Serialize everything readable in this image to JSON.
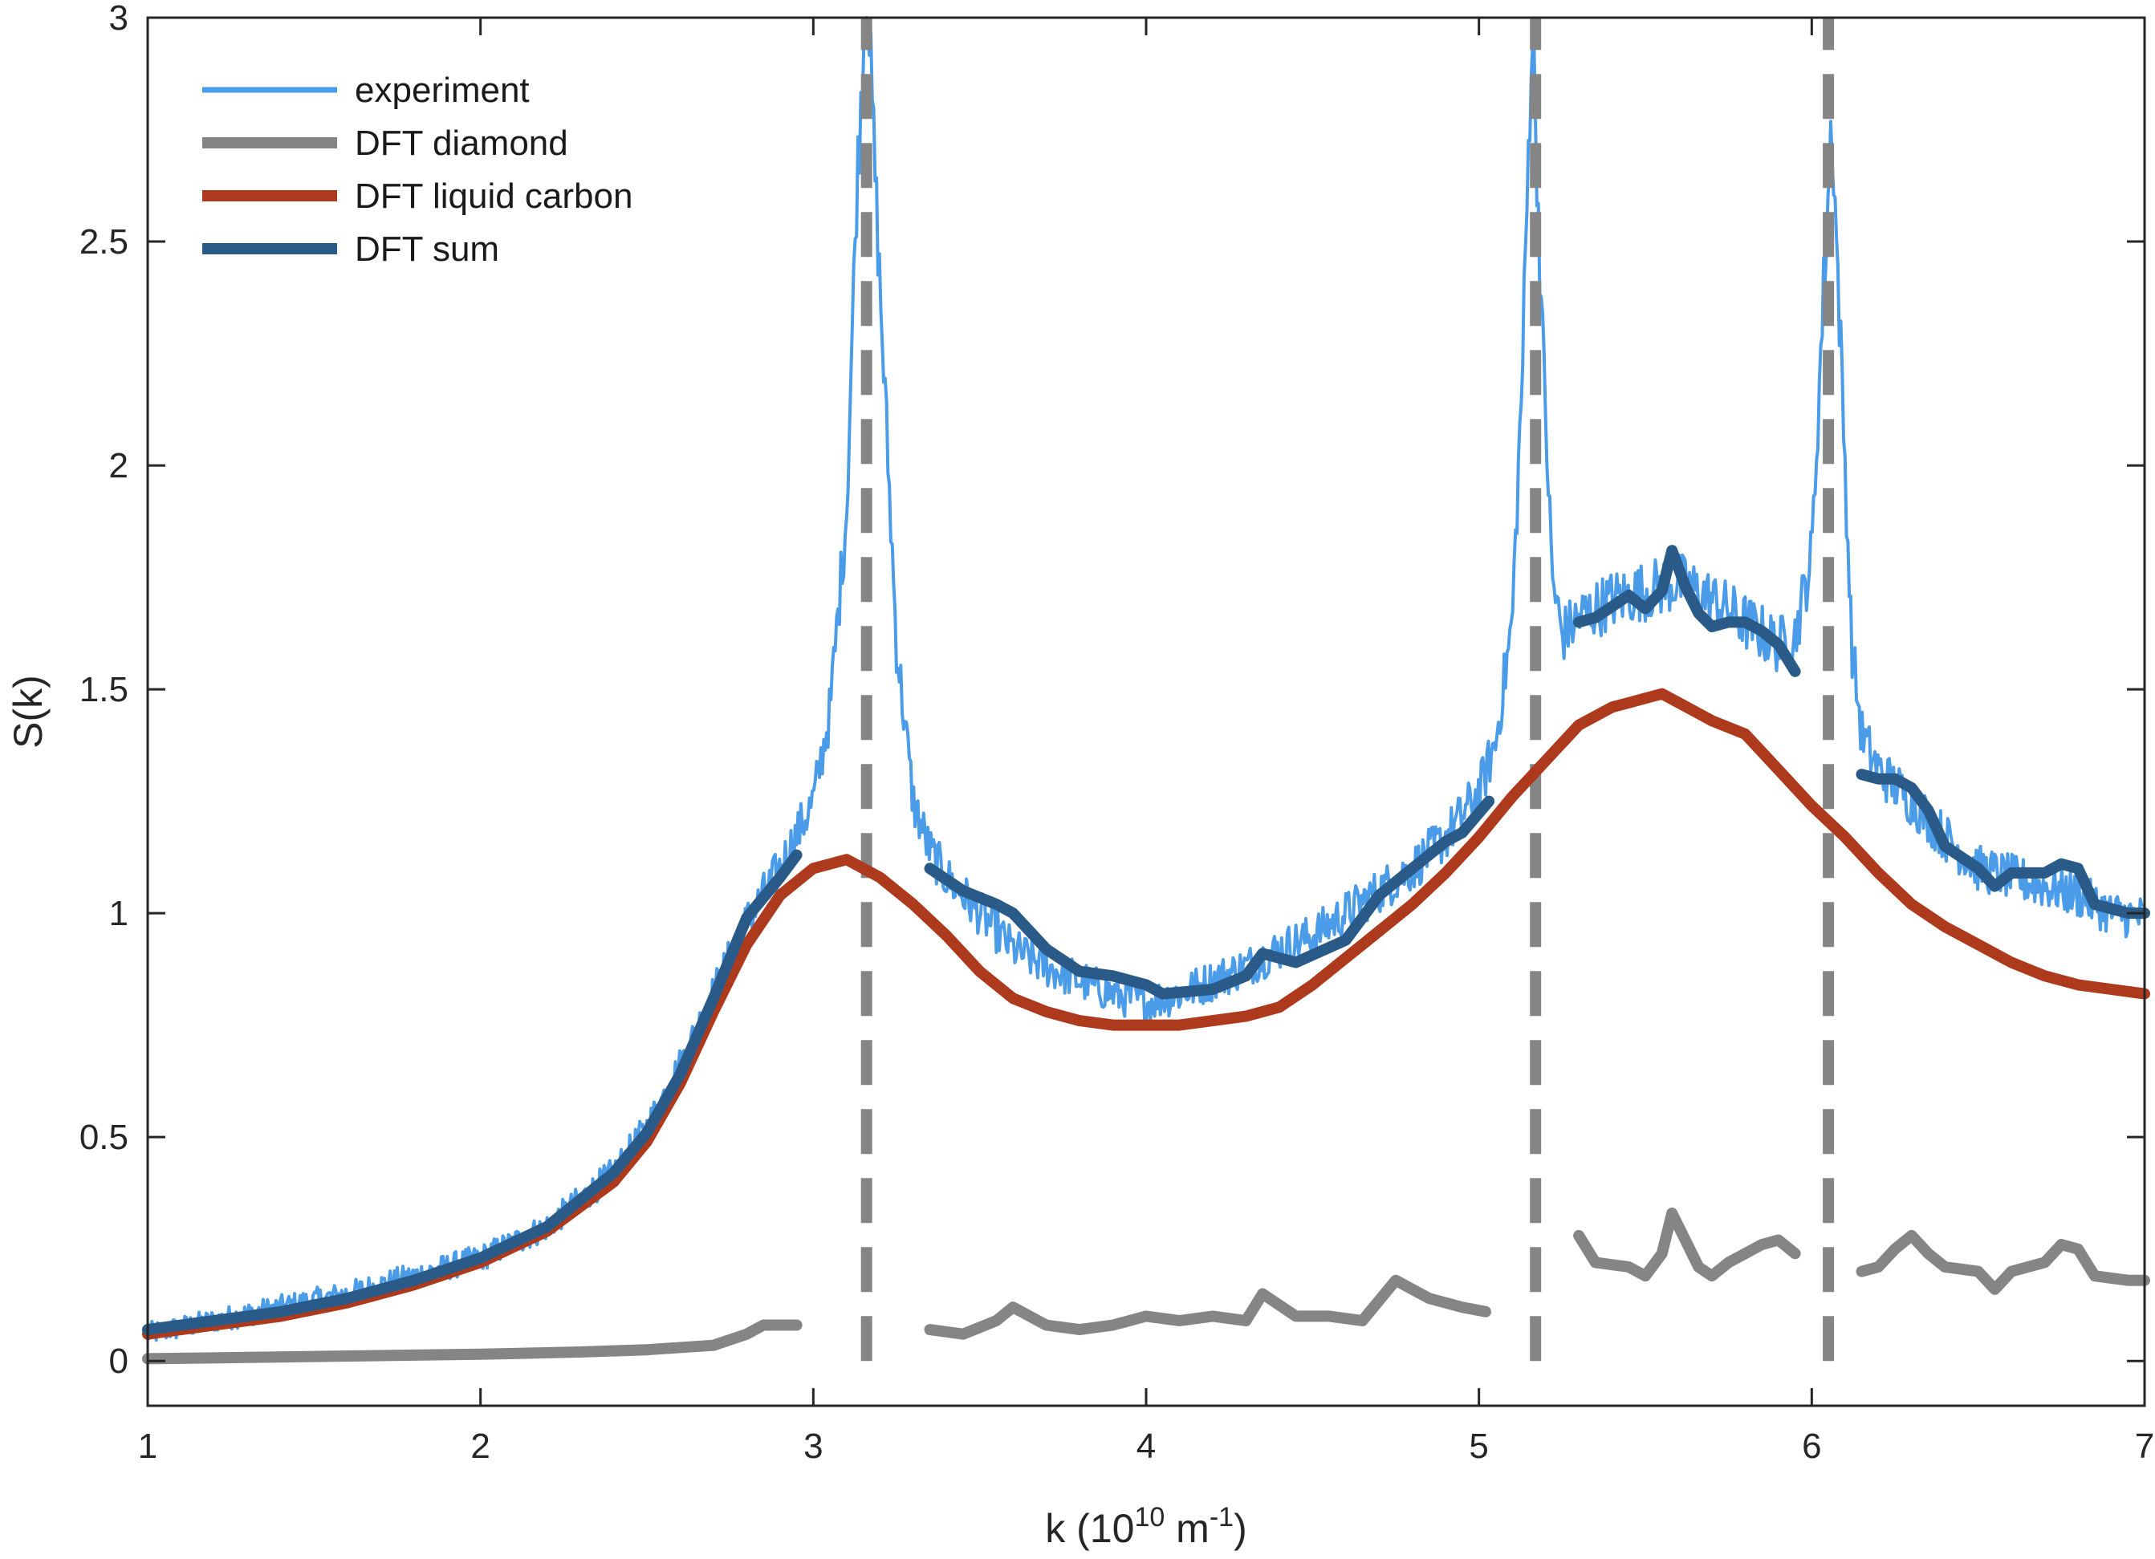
{
  "chart_data": {
    "type": "line",
    "xlabel_prefix": "k (10",
    "xlabel_exp1": "10",
    "xlabel_mid": " m",
    "xlabel_exp2": "-1",
    "xlabel_suffix": ")",
    "ylabel": "S(k)",
    "xlim": [
      1,
      7
    ],
    "ylim": [
      -0.1,
      3
    ],
    "xticks": [
      1,
      2,
      3,
      4,
      5,
      6,
      7
    ],
    "yticks": [
      0,
      0.5,
      1,
      1.5,
      2,
      2.5,
      3
    ],
    "xtick_labels": [
      "1",
      "2",
      "3",
      "4",
      "5",
      "6",
      "7"
    ],
    "ytick_labels": [
      "0",
      "0.5",
      "1",
      "1.5",
      "2",
      "2.5",
      "3"
    ],
    "legend_position": "top-left",
    "colors": {
      "experiment": "#4a9be8",
      "diamond": "#858585",
      "liquid": "#ad3a1c",
      "sum": "#2a5a87",
      "axis": "#262626"
    },
    "series": [
      {
        "name": "experiment",
        "noise": 0.05,
        "x": [
          1.0,
          1.2,
          1.4,
          1.6,
          1.8,
          2.0,
          2.2,
          2.4,
          2.5,
          2.6,
          2.7,
          2.8,
          2.9,
          3.0,
          3.05,
          3.1,
          3.13,
          3.16,
          3.2,
          3.25,
          3.3,
          3.35,
          3.4,
          3.5,
          3.6,
          3.7,
          3.8,
          3.9,
          4.0,
          4.1,
          4.2,
          4.3,
          4.4,
          4.5,
          4.6,
          4.7,
          4.8,
          4.9,
          5.0,
          5.05,
          5.1,
          5.13,
          5.16,
          5.19,
          5.22,
          5.25,
          5.3,
          5.4,
          5.5,
          5.6,
          5.7,
          5.8,
          5.9,
          5.95,
          6.0,
          6.03,
          6.06,
          6.09,
          6.12,
          6.15,
          6.2,
          6.3,
          6.4,
          6.5,
          6.6,
          6.7,
          6.8,
          6.9,
          7.0
        ],
        "y": [
          0.06,
          0.09,
          0.12,
          0.15,
          0.19,
          0.23,
          0.3,
          0.42,
          0.52,
          0.66,
          0.82,
          0.98,
          1.1,
          1.25,
          1.45,
          1.9,
          2.6,
          3.1,
          2.4,
          1.6,
          1.25,
          1.14,
          1.08,
          1.0,
          0.92,
          0.88,
          0.85,
          0.82,
          0.8,
          0.82,
          0.85,
          0.88,
          0.92,
          0.95,
          1.0,
          1.05,
          1.1,
          1.17,
          1.27,
          1.38,
          1.65,
          2.2,
          3.0,
          2.3,
          1.75,
          1.62,
          1.66,
          1.7,
          1.72,
          1.74,
          1.7,
          1.65,
          1.6,
          1.62,
          1.8,
          2.3,
          2.78,
          2.2,
          1.6,
          1.4,
          1.32,
          1.25,
          1.17,
          1.1,
          1.08,
          1.06,
          1.04,
          1.0,
          0.99
        ]
      },
      {
        "name": "DFT diamond",
        "segments": [
          {
            "x": [
              1.0,
              1.5,
              2.0,
              2.3,
              2.5,
              2.7,
              2.8,
              2.85,
              2.9,
              2.95
            ],
            "y": [
              0.005,
              0.01,
              0.015,
              0.02,
              0.025,
              0.035,
              0.06,
              0.08,
              0.08,
              0.08
            ]
          },
          {
            "x": [
              3.35,
              3.45,
              3.55,
              3.6,
              3.7,
              3.8,
              3.9,
              4.0,
              4.1,
              4.2,
              4.3,
              4.35,
              4.45,
              4.55,
              4.65,
              4.75,
              4.85,
              4.95,
              5.02
            ],
            "y": [
              0.07,
              0.06,
              0.09,
              0.12,
              0.08,
              0.07,
              0.08,
              0.1,
              0.09,
              0.1,
              0.09,
              0.15,
              0.1,
              0.1,
              0.09,
              0.18,
              0.14,
              0.12,
              0.11
            ]
          },
          {
            "x": [
              5.3,
              5.35,
              5.45,
              5.5,
              5.55,
              5.58,
              5.62,
              5.66,
              5.7,
              5.75,
              5.8,
              5.85,
              5.9,
              5.95
            ],
            "y": [
              0.28,
              0.22,
              0.21,
              0.19,
              0.24,
              0.33,
              0.27,
              0.21,
              0.19,
              0.22,
              0.24,
              0.26,
              0.27,
              0.24
            ]
          },
          {
            "x": [
              6.15,
              6.2,
              6.25,
              6.3,
              6.35,
              6.4,
              6.5,
              6.55,
              6.6,
              6.7,
              6.75,
              6.8,
              6.85,
              6.95,
              7.0
            ],
            "y": [
              0.2,
              0.21,
              0.25,
              0.28,
              0.24,
              0.21,
              0.2,
              0.16,
              0.2,
              0.22,
              0.26,
              0.25,
              0.19,
              0.18,
              0.18
            ]
          }
        ],
        "peaks": [
          3.16,
          5.17,
          6.05
        ]
      },
      {
        "name": "DFT liquid carbon",
        "x": [
          1.0,
          1.2,
          1.4,
          1.6,
          1.8,
          2.0,
          2.2,
          2.4,
          2.5,
          2.6,
          2.7,
          2.8,
          2.9,
          3.0,
          3.1,
          3.2,
          3.3,
          3.4,
          3.5,
          3.6,
          3.7,
          3.8,
          3.9,
          4.0,
          4.1,
          4.2,
          4.3,
          4.4,
          4.5,
          4.6,
          4.7,
          4.8,
          4.9,
          5.0,
          5.1,
          5.2,
          5.3,
          5.4,
          5.5,
          5.55,
          5.6,
          5.7,
          5.8,
          5.9,
          6.0,
          6.1,
          6.2,
          6.3,
          6.4,
          6.5,
          6.6,
          6.7,
          6.8,
          6.9,
          7.0
        ],
        "y": [
          0.06,
          0.08,
          0.1,
          0.13,
          0.17,
          0.22,
          0.29,
          0.4,
          0.49,
          0.62,
          0.78,
          0.93,
          1.04,
          1.1,
          1.12,
          1.08,
          1.02,
          0.95,
          0.87,
          0.81,
          0.78,
          0.76,
          0.75,
          0.75,
          0.75,
          0.76,
          0.77,
          0.79,
          0.84,
          0.9,
          0.96,
          1.02,
          1.09,
          1.17,
          1.26,
          1.34,
          1.42,
          1.46,
          1.48,
          1.49,
          1.47,
          1.43,
          1.4,
          1.32,
          1.24,
          1.17,
          1.09,
          1.02,
          0.97,
          0.93,
          0.89,
          0.86,
          0.84,
          0.83,
          0.82
        ]
      },
      {
        "name": "DFT sum",
        "segments": [
          {
            "x": [
              1.0,
              1.2,
              1.4,
              1.6,
              1.8,
              2.0,
              2.2,
              2.4,
              2.5,
              2.6,
              2.7,
              2.8,
              2.9,
              2.95
            ],
            "y": [
              0.07,
              0.09,
              0.11,
              0.14,
              0.18,
              0.23,
              0.3,
              0.42,
              0.51,
              0.64,
              0.81,
              0.99,
              1.08,
              1.13
            ]
          },
          {
            "x": [
              3.35,
              3.45,
              3.55,
              3.6,
              3.7,
              3.8,
              3.9,
              4.0,
              4.05,
              4.2,
              4.3,
              4.35,
              4.45,
              4.6,
              4.7,
              4.8,
              4.9,
              4.95,
              5.03
            ],
            "y": [
              1.1,
              1.05,
              1.02,
              1.0,
              0.92,
              0.87,
              0.86,
              0.84,
              0.82,
              0.83,
              0.86,
              0.91,
              0.89,
              0.94,
              1.04,
              1.1,
              1.16,
              1.18,
              1.25
            ]
          },
          {
            "x": [
              5.3,
              5.35,
              5.45,
              5.5,
              5.55,
              5.58,
              5.62,
              5.66,
              5.7,
              5.75,
              5.8,
              5.85,
              5.9,
              5.95
            ],
            "y": [
              1.65,
              1.66,
              1.71,
              1.68,
              1.72,
              1.81,
              1.73,
              1.67,
              1.64,
              1.65,
              1.65,
              1.63,
              1.6,
              1.54
            ]
          },
          {
            "x": [
              6.15,
              6.2,
              6.25,
              6.3,
              6.35,
              6.4,
              6.5,
              6.55,
              6.6,
              6.7,
              6.75,
              6.8,
              6.85,
              6.95,
              7.0
            ],
            "y": [
              1.31,
              1.3,
              1.3,
              1.28,
              1.23,
              1.15,
              1.1,
              1.06,
              1.09,
              1.09,
              1.11,
              1.1,
              1.02,
              1.0,
              1.0
            ]
          }
        ]
      }
    ]
  }
}
